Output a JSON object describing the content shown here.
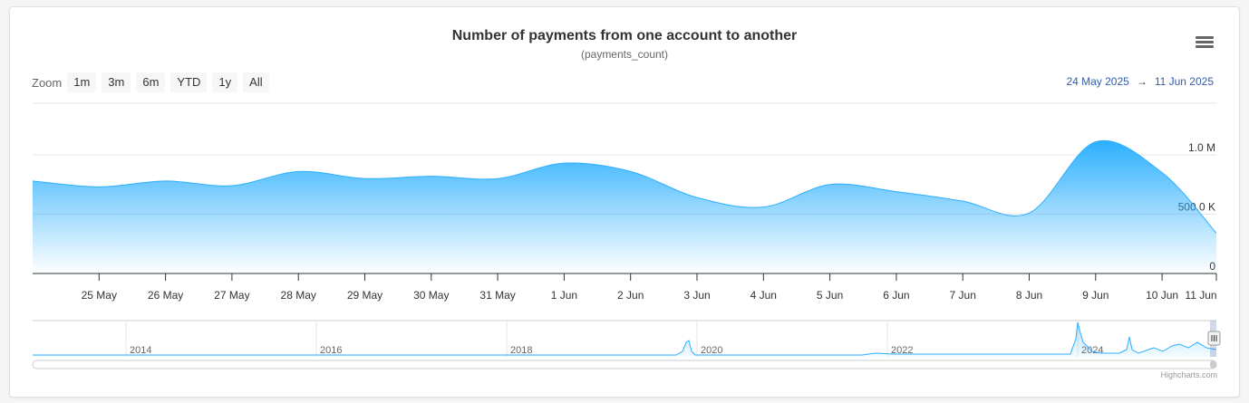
{
  "title": "Number of payments from one account to another",
  "subtitle": "(payments_count)",
  "zoom": {
    "label": "Zoom",
    "buttons": [
      "1m",
      "3m",
      "6m",
      "YTD",
      "1y",
      "All"
    ]
  },
  "range": {
    "from": "24 May 2025",
    "arrow": "→",
    "to": "11 Jun 2025"
  },
  "credits": "Highcharts.com",
  "colors": {
    "series": "#2caffe",
    "axis": "#333333",
    "grid": "#e6e6e6"
  },
  "chart_data": {
    "type": "area",
    "title": "Number of payments from one account to another",
    "subtitle": "(payments_count)",
    "x_ticks": [
      "25 May",
      "26 May",
      "27 May",
      "28 May",
      "29 May",
      "30 May",
      "31 May",
      "1 Jun",
      "2 Jun",
      "3 Jun",
      "4 Jun",
      "5 Jun",
      "6 Jun",
      "7 Jun",
      "8 Jun",
      "9 Jun",
      "10 Jun",
      "11 Jun"
    ],
    "y_ticks": [
      "0",
      "500.0 K",
      "1.0 M"
    ],
    "ylim": [
      0,
      1000000
    ],
    "grid": true,
    "legend": "none",
    "series": [
      {
        "x": [
          "24 May",
          "25 May",
          "26 May",
          "27 May",
          "28 May",
          "29 May",
          "30 May",
          "31 May",
          "1 Jun",
          "2 Jun",
          "3 Jun",
          "4 Jun",
          "5 Jun",
          "6 Jun",
          "7 Jun",
          "8 Jun",
          "9 Jun",
          "10 Jun",
          "11 Jun"
        ],
        "values": [
          780000,
          730000,
          780000,
          740000,
          860000,
          800000,
          820000,
          800000,
          930000,
          860000,
          640000,
          560000,
          750000,
          690000,
          610000,
          510000,
          1110000,
          850000,
          340000
        ]
      }
    ],
    "navigator": {
      "year_labels": [
        "2014",
        "2016",
        "2018",
        "2020",
        "2022",
        "2024"
      ]
    }
  }
}
